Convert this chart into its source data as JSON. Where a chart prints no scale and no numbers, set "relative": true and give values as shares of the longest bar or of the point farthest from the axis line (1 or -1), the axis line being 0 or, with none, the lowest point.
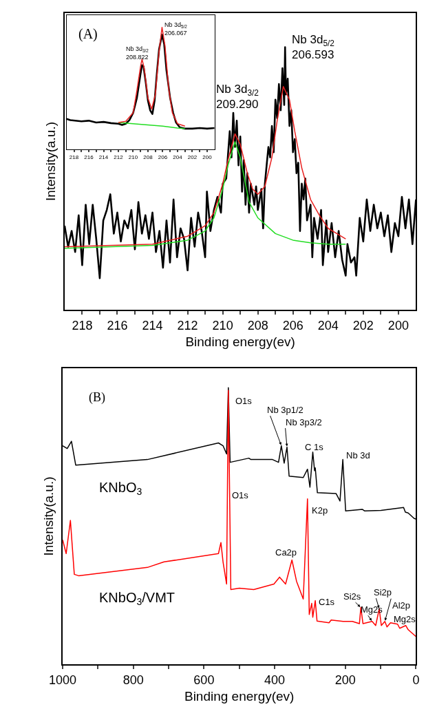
{
  "chart_data": [
    {
      "type": "line",
      "relative": true,
      "xlabel": "Binding energy(ev)",
      "ylabel": "Intensity(a.u.)",
      "tick_labels": "x",
      "xlim": [
        219,
        199
      ],
      "xticks": [
        218,
        {
          "value": 217,
          "label": null
        },
        216,
        {
          "value": 215,
          "label": null
        },
        214,
        {
          "value": 213,
          "label": null
        },
        212,
        {
          "value": 211,
          "label": null
        },
        210,
        {
          "value": 209,
          "label": null
        },
        208,
        {
          "value": 207,
          "label": null
        },
        206,
        {
          "value": 205,
          "label": null
        },
        204,
        {
          "value": 203,
          "label": null
        },
        202,
        {
          "value": 201,
          "label": null
        },
        200
      ],
      "series": [
        {
          "color": "#000000",
          "x": [
            219.0,
            218.8,
            218.6,
            218.4,
            218.2,
            218.0,
            217.8,
            217.6,
            217.4,
            217.2,
            217.0,
            216.8,
            216.6,
            216.4,
            216.2,
            216.0,
            215.8,
            215.6,
            215.4,
            215.2,
            215.0,
            214.8,
            214.6,
            214.4,
            214.2,
            214.0,
            213.8,
            213.6,
            213.4,
            213.2,
            213.0,
            212.8,
            212.6,
            212.4,
            212.2,
            212.0,
            211.8,
            211.6,
            211.4,
            211.2,
            211.0,
            210.9,
            210.7,
            210.5,
            210.3,
            210.1,
            210.0,
            209.8,
            209.6,
            209.5,
            209.4,
            209.3,
            209.2,
            209.1,
            209.0,
            208.9,
            208.8,
            208.7,
            208.6,
            208.5,
            208.4,
            208.2,
            208.1,
            208.0,
            207.8,
            207.7,
            207.6,
            207.5,
            207.4,
            207.3,
            207.2,
            207.1,
            207.0,
            206.9,
            206.8,
            206.7,
            206.6,
            206.5,
            206.45,
            206.4,
            206.3,
            206.2,
            206.1,
            206.0,
            205.9,
            205.8,
            205.7,
            205.6,
            205.5,
            205.4,
            205.3,
            205.2,
            205.0,
            204.9,
            204.8,
            204.6,
            204.4,
            204.3,
            204.1,
            204.0,
            203.8,
            203.6,
            203.4,
            203.2,
            203.0,
            202.9,
            202.7,
            202.5,
            202.4,
            202.2,
            202.0,
            201.8,
            201.6,
            201.4,
            201.2,
            201.0,
            200.8,
            200.6,
            200.4,
            200.2,
            200.0,
            199.8,
            199.6,
            199.4,
            199.2,
            199.0
          ],
          "values": [
            0.32,
            0.24,
            0.3,
            0.22,
            0.36,
            0.17,
            0.4,
            0.25,
            0.4,
            0.27,
            0.12,
            0.34,
            0.38,
            0.44,
            0.29,
            0.37,
            0.26,
            0.34,
            0.31,
            0.38,
            0.23,
            0.41,
            0.29,
            0.36,
            0.27,
            0.37,
            0.22,
            0.3,
            0.16,
            0.34,
            0.18,
            0.42,
            0.2,
            0.31,
            0.27,
            0.15,
            0.35,
            0.24,
            0.37,
            0.3,
            0.2,
            0.45,
            0.3,
            0.38,
            0.43,
            0.37,
            0.48,
            0.5,
            0.68,
            0.58,
            0.75,
            0.62,
            0.72,
            0.55,
            0.66,
            0.45,
            0.57,
            0.4,
            0.52,
            0.37,
            0.48,
            0.4,
            0.47,
            0.38,
            0.46,
            0.31,
            0.48,
            0.55,
            0.62,
            0.58,
            0.7,
            0.6,
            0.8,
            0.73,
            0.86,
            0.76,
            0.92,
            0.78,
            1.0,
            0.82,
            0.88,
            0.7,
            0.76,
            0.6,
            0.65,
            0.52,
            0.56,
            0.3,
            0.48,
            0.42,
            0.5,
            0.34,
            0.4,
            0.2,
            0.35,
            0.27,
            0.38,
            0.17,
            0.34,
            0.22,
            0.33,
            0.2,
            0.3,
            0.19,
            0.13,
            0.25,
            0.18,
            0.2,
            0.13,
            0.35,
            0.26,
            0.42,
            0.3,
            0.4,
            0.31,
            0.37,
            0.28,
            0.36,
            0.22,
            0.33,
            0.28,
            0.43,
            0.31,
            0.42,
            0.25,
            0.42
          ]
        },
        {
          "color": "#22dd22",
          "x": [
            219,
            214,
            212,
            211,
            210.5,
            210,
            209.7,
            209.3,
            209.0,
            208.5,
            208,
            207,
            206,
            205,
            204,
            203
          ],
          "values": [
            0.234,
            0.245,
            0.265,
            0.3,
            0.35,
            0.46,
            0.55,
            0.64,
            0.58,
            0.41,
            0.35,
            0.29,
            0.265,
            0.255,
            0.25,
            0.25
          ]
        },
        {
          "color": "#e8201f",
          "x": [
            219,
            214,
            212,
            211,
            210.5,
            210,
            209.7,
            209.3,
            209.0,
            208.6,
            208.3,
            208.0,
            207.6,
            207.2,
            206.9,
            206.55,
            206.2,
            205.9,
            205.5,
            205.0,
            204.5,
            204,
            203.5,
            203
          ],
          "values": [
            0.24,
            0.25,
            0.28,
            0.32,
            0.37,
            0.48,
            0.57,
            0.67,
            0.63,
            0.52,
            0.46,
            0.44,
            0.47,
            0.58,
            0.72,
            0.85,
            0.8,
            0.68,
            0.54,
            0.42,
            0.36,
            0.31,
            0.29,
            0.27
          ]
        }
      ],
      "annotations": [
        {
          "text": "Nb 3d$_{3/2}$\n209.290",
          "x": 209.4,
          "y": 0.75
        },
        {
          "text": "Nb 3d$_{5/2}$\n206.593",
          "x": 206.45,
          "y": 1.0
        }
      ]
    },
    {
      "type": "line",
      "relative": true,
      "tick_labels": "x",
      "xlim": [
        219,
        199
      ],
      "xticks": [
        218,
        {
          "value": 217,
          "label": null
        },
        216,
        {
          "value": 215,
          "label": null
        },
        214,
        {
          "value": 213,
          "label": null
        },
        212,
        {
          "value": 211,
          "label": null
        },
        210,
        {
          "value": 209,
          "label": null
        },
        208,
        {
          "value": 207,
          "label": null
        },
        206,
        {
          "value": 205,
          "label": null
        },
        204,
        {
          "value": 203,
          "label": null
        },
        202,
        {
          "value": 201,
          "label": null
        },
        200
      ],
      "series": [
        {
          "color": "#000000",
          "x": [
            219,
            218.5,
            217,
            216,
            215,
            214,
            213,
            212,
            211.5,
            211,
            210.5,
            210,
            209.5,
            209,
            208.8,
            208.6,
            208.3,
            208,
            207.7,
            207.4,
            207.1,
            206.8,
            206.5,
            206.1,
            205.8,
            205.5,
            205,
            204.6,
            204.2,
            203.7,
            203,
            202,
            201,
            200,
            199
          ],
          "values": [
            0.25,
            0.24,
            0.23,
            0.235,
            0.22,
            0.225,
            0.215,
            0.21,
            0.2,
            0.21,
            0.24,
            0.3,
            0.42,
            0.62,
            0.69,
            0.68,
            0.55,
            0.4,
            0.32,
            0.29,
            0.4,
            0.62,
            0.82,
            0.94,
            0.86,
            0.65,
            0.42,
            0.3,
            0.22,
            0.18,
            0.17,
            0.17,
            0.175,
            0.17,
            0.175
          ]
        },
        {
          "color": "#22dd22",
          "x": [
            212,
            210,
            208,
            206,
            204,
            203
          ],
          "values": [
            0.22,
            0.21,
            0.2,
            0.19,
            0.175,
            0.17
          ]
        },
        {
          "color": "#e8201f",
          "x": [
            212,
            211,
            210,
            209.5,
            209,
            208.8,
            208.5,
            208,
            207.5,
            207,
            206.5,
            206.1,
            205.7,
            205.2,
            204.7,
            204,
            203
          ],
          "values": [
            0.22,
            0.23,
            0.3,
            0.48,
            0.68,
            0.74,
            0.66,
            0.42,
            0.33,
            0.45,
            0.8,
            1.0,
            0.85,
            0.5,
            0.3,
            0.21,
            0.19
          ]
        }
      ],
      "annotations": [
        "(A)",
        {
          "text": "Nb 3d$_{3/2}$\n208.822",
          "x": 208.8,
          "y": 0.74
        },
        {
          "text": "Nb 3d$_{5/2}$\n206.067",
          "x": 206.1,
          "y": 1.0
        }
      ]
    },
    {
      "type": "line",
      "relative": true,
      "xlabel": "Binding energy(ev)",
      "ylabel": "Intensity(a.u.)",
      "tick_labels": "x",
      "xlim": [
        1000,
        0
      ],
      "xticks": [
        1000,
        {
          "value": 900,
          "label": null
        },
        800,
        {
          "value": 700,
          "label": null
        },
        600,
        {
          "value": 500,
          "label": null
        },
        400,
        {
          "value": 300,
          "label": null
        },
        200,
        {
          "value": 100,
          "label": null
        },
        0
      ],
      "series": [
        {
          "name": "KNbO$_{3}$",
          "color": "#000000",
          "x": [
            1000,
            987,
            975,
            963,
            760,
            559,
            546,
            536,
            531,
            526,
            473,
            467,
            406,
            389,
            381,
            373,
            365,
            359,
            319,
            307,
            300,
            292,
            287,
            285,
            279,
            226,
            215,
            207,
            199,
            152,
            145,
            99,
            35,
            30,
            22,
            5,
            0
          ],
          "values": [
            0.79,
            0.78,
            0.806,
            0.72,
            0.74,
            0.8,
            0.79,
            0.76,
            1.0,
            0.73,
            0.745,
            0.74,
            0.74,
            0.73,
            0.79,
            0.727,
            0.785,
            0.68,
            0.675,
            0.705,
            0.64,
            0.767,
            0.7,
            0.71,
            0.62,
            0.617,
            0.59,
            0.74,
            0.554,
            0.56,
            0.554,
            0.556,
            0.567,
            0.55,
            0.547,
            0.527,
            0.525
          ]
        },
        {
          "name": "KNbO$_{3}$/VMT",
          "color": "#ff0000",
          "x": [
            1000,
            990,
            978,
            967,
            955,
            760,
            713,
            559,
            552,
            546,
            536,
            531,
            524,
            500,
            459,
            402,
            386,
            369,
            351,
            338,
            319,
            307,
            302,
            295,
            292,
            285,
            280,
            246,
            240,
            206,
            180,
            160,
            156,
            150,
            124,
            114,
            104,
            98,
            88,
            82,
            72,
            52,
            46,
            29,
            22,
            0
          ],
          "values": [
            0.45,
            0.4,
            0.52,
            0.325,
            0.32,
            0.35,
            0.37,
            0.4,
            0.44,
            0.37,
            0.29,
            0.99,
            0.27,
            0.275,
            0.27,
            0.29,
            0.315,
            0.29,
            0.377,
            0.3,
            0.236,
            0.598,
            0.18,
            0.22,
            0.17,
            0.23,
            0.156,
            0.15,
            0.16,
            0.155,
            0.155,
            0.147,
            0.205,
            0.147,
            0.155,
            0.14,
            0.2,
            0.14,
            0.155,
            0.135,
            0.15,
            0.145,
            0.13,
            0.14,
            0.125,
            0.1
          ]
        }
      ],
      "annotations": [
        "(B)",
        {
          "text": "O1s",
          "x": 531,
          "y": 1.0
        },
        {
          "text": "Nb 3p1/2",
          "x": 381,
          "y": 0.79
        },
        {
          "text": "Nb 3p3/2",
          "x": 365,
          "y": 0.785
        },
        {
          "text": "C 1s",
          "x": 292,
          "y": 0.767
        },
        {
          "text": "Nb 3d",
          "x": 207,
          "y": 0.74
        },
        {
          "text": "O1s",
          "x": 533.5,
          "y": 0.64
        },
        {
          "text": "K2p",
          "x": 307,
          "y": 0.598
        },
        {
          "text": "Ca2p",
          "x": 351,
          "y": 0.377
        },
        {
          "text": "C1s",
          "x": 285,
          "y": 0.23
        },
        {
          "text": "Si2s",
          "x": 156,
          "y": 0.205
        },
        {
          "text": "Mg2s",
          "x": 124,
          "y": 0.155
        },
        {
          "text": "Si2p",
          "x": 104,
          "y": 0.2
        },
        {
          "text": "Al2p",
          "x": 88,
          "y": 0.155
        },
        {
          "text": "Mg2s",
          "x": 52,
          "y": 0.145
        }
      ]
    }
  ]
}
